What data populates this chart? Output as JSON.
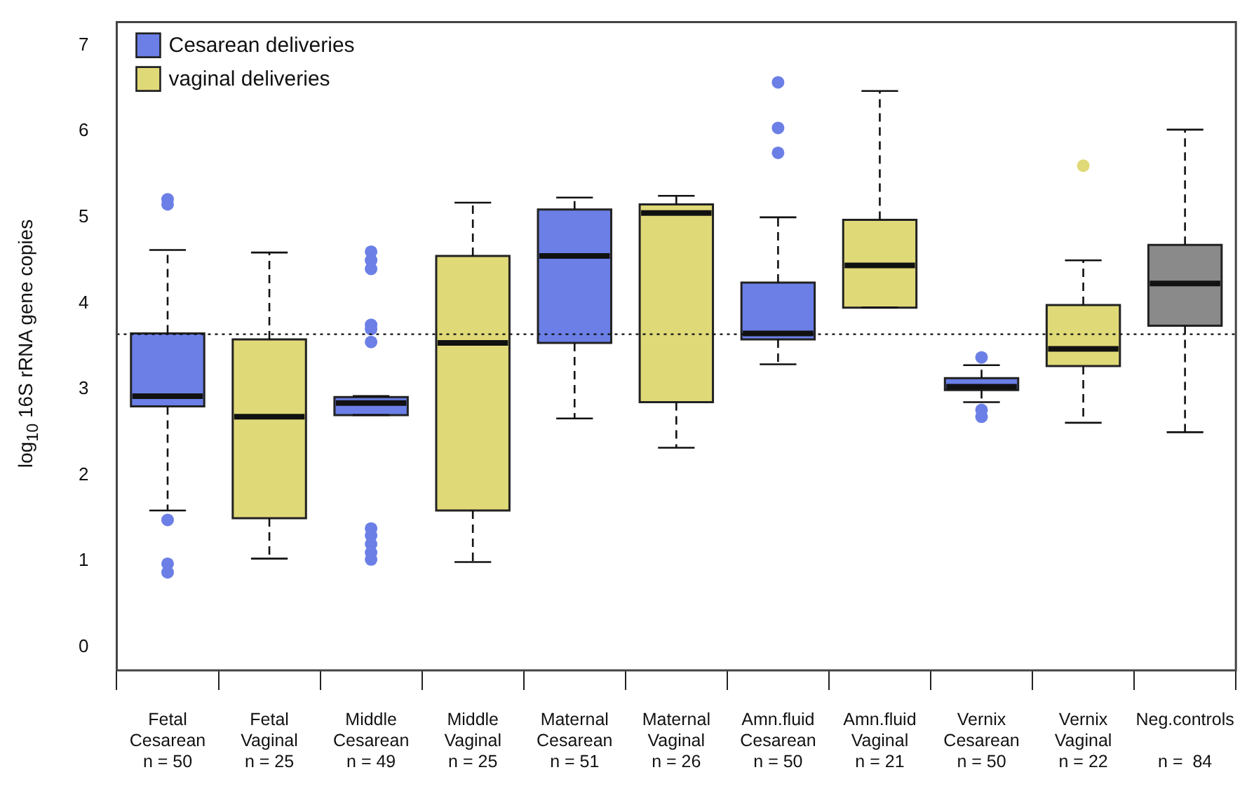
{
  "chart_data": {
    "type": "box",
    "ylabel": "log$_{10}$ 16S rRNA gene copies",
    "categories": [
      "Fetal\nCesarean\nn = 50",
      "Fetal\nVaginal\nn = 25",
      "Middle\nCesarean\nn = 49",
      "Middle\nVaginal\nn = 25",
      "Maternal\nCesarean\nn = 51",
      "Maternal\nVaginal\nn = 26",
      "Amn.fluid\nCesarean\nn = 50",
      "Amn.fluid\nVaginal\nn = 21",
      "Vernix\nCesarean\nn = 50",
      "Vernix\nVaginal\nn = 22",
      "Neg.controls\n\nn =  84"
    ],
    "series": [
      {
        "name": "Cesarean deliveries",
        "color": "#6b7fe6",
        "boxes": [
          {
            "low": 1.59,
            "q1": 2.8,
            "median": 2.92,
            "q3": 3.65,
            "high": 4.62,
            "outliers": [
              5.21,
              5.15,
              1.48,
              0.97,
              0.87
            ]
          },
          null,
          {
            "low": 2.7,
            "q1": 2.7,
            "median": 2.84,
            "q3": 2.91,
            "high": 2.92,
            "outliers": [
              4.6,
              4.5,
              4.4,
              3.75,
              3.7,
              3.55,
              1.38,
              1.3,
              1.2,
              1.1,
              1.02
            ]
          },
          null,
          {
            "low": 2.66,
            "q1": 3.54,
            "median": 4.55,
            "q3": 5.09,
            "high": 5.23
          },
          null,
          {
            "low": 3.29,
            "q1": 3.58,
            "median": 3.65,
            "q3": 4.24,
            "high": 5.0,
            "outliers": [
              6.57,
              6.04,
              5.75
            ]
          },
          null,
          {
            "low": 2.85,
            "q1": 2.99,
            "median": 3.03,
            "q3": 3.13,
            "high": 3.28,
            "outliers": [
              3.37,
              2.76,
              2.68
            ]
          },
          null,
          null
        ]
      },
      {
        "name": "vaginal deliveries",
        "color": "#e0d978",
        "boxes": [
          null,
          {
            "low": 1.03,
            "q1": 1.5,
            "median": 2.68,
            "q3": 3.58,
            "high": 4.59
          },
          null,
          {
            "low": 0.99,
            "q1": 1.59,
            "median": 3.54,
            "q3": 4.55,
            "high": 5.17
          },
          null,
          {
            "low": 2.32,
            "q1": 2.85,
            "median": 5.05,
            "q3": 5.15,
            "high": 5.25
          },
          null,
          {
            "low": 3.95,
            "q1": 3.95,
            "median": 4.44,
            "q3": 4.97,
            "high": 6.47
          },
          null,
          {
            "low": 2.61,
            "q1": 3.27,
            "median": 3.47,
            "q3": 3.98,
            "high": 4.5,
            "outliers": [
              5.6
            ]
          },
          null
        ]
      },
      {
        "color": "#8a8a8a",
        "boxes": [
          null,
          null,
          null,
          null,
          null,
          null,
          null,
          null,
          null,
          null,
          {
            "low": 2.5,
            "q1": 3.74,
            "median": 4.23,
            "q3": 4.68,
            "high": 6.02
          }
        ]
      }
    ],
    "ylim": [
      -0.27,
      7.27
    ],
    "yticks": [
      0,
      1,
      2,
      3,
      4,
      5,
      6,
      7
    ],
    "grid": false,
    "legend": "top left",
    "ref_lines": [
      {
        "axis": "y",
        "value": 3.64,
        "line_style": "dotted"
      }
    ]
  }
}
